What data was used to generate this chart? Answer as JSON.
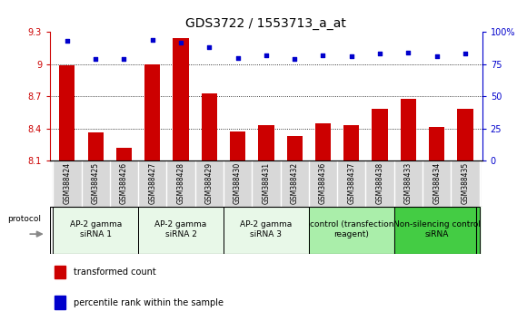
{
  "title": "GDS3722 / 1553713_a_at",
  "samples": [
    "GSM388424",
    "GSM388425",
    "GSM388426",
    "GSM388427",
    "GSM388428",
    "GSM388429",
    "GSM388430",
    "GSM388431",
    "GSM388432",
    "GSM388436",
    "GSM388437",
    "GSM388438",
    "GSM388433",
    "GSM388434",
    "GSM388435"
  ],
  "transformed_count": [
    8.99,
    8.36,
    8.22,
    9.0,
    9.24,
    8.73,
    8.37,
    8.43,
    8.33,
    8.45,
    8.43,
    8.58,
    8.68,
    8.41,
    8.58
  ],
  "percentile_rank": [
    93,
    79,
    79,
    94,
    92,
    88,
    80,
    82,
    79,
    82,
    81,
    83,
    84,
    81,
    83
  ],
  "ylim_left": [
    8.1,
    9.3
  ],
  "ylim_right": [
    0,
    100
  ],
  "yticks_left": [
    8.1,
    8.4,
    8.7,
    9.0,
    9.3
  ],
  "ytick_labels_left": [
    "8.1",
    "8.4",
    "8.7",
    "9",
    "9.3"
  ],
  "yticks_right": [
    0,
    25,
    50,
    75,
    100
  ],
  "ytick_labels_right": [
    "0",
    "25",
    "50",
    "75",
    "100%"
  ],
  "bar_color": "#cc0000",
  "dot_color": "#0000cc",
  "groups": [
    {
      "label": "AP-2 gamma\nsiRNA 1",
      "start": 0,
      "end": 3,
      "color": "#e8f8e8"
    },
    {
      "label": "AP-2 gamma\nsiRNA 2",
      "start": 3,
      "end": 6,
      "color": "#e8f8e8"
    },
    {
      "label": "AP-2 gamma\nsiRNA 3",
      "start": 6,
      "end": 9,
      "color": "#e8f8e8"
    },
    {
      "label": "control (transfection\nreagent)",
      "start": 9,
      "end": 12,
      "color": "#aaeeaa"
    },
    {
      "label": "Non-silencing control\nsiRNA",
      "start": 12,
      "end": 15,
      "color": "#44cc44"
    }
  ],
  "protocol_label": "protocol",
  "legend_items": [
    {
      "color": "#cc0000",
      "label": "transformed count"
    },
    {
      "color": "#0000cc",
      "label": "percentile rank within the sample"
    }
  ],
  "left_color": "#cc0000",
  "right_color": "#0000cc",
  "title_fontsize": 10,
  "tick_fontsize": 7,
  "sample_fontsize": 5.5,
  "group_fontsize": 6.5,
  "legend_fontsize": 7,
  "sample_bg": "#d8d8d8"
}
